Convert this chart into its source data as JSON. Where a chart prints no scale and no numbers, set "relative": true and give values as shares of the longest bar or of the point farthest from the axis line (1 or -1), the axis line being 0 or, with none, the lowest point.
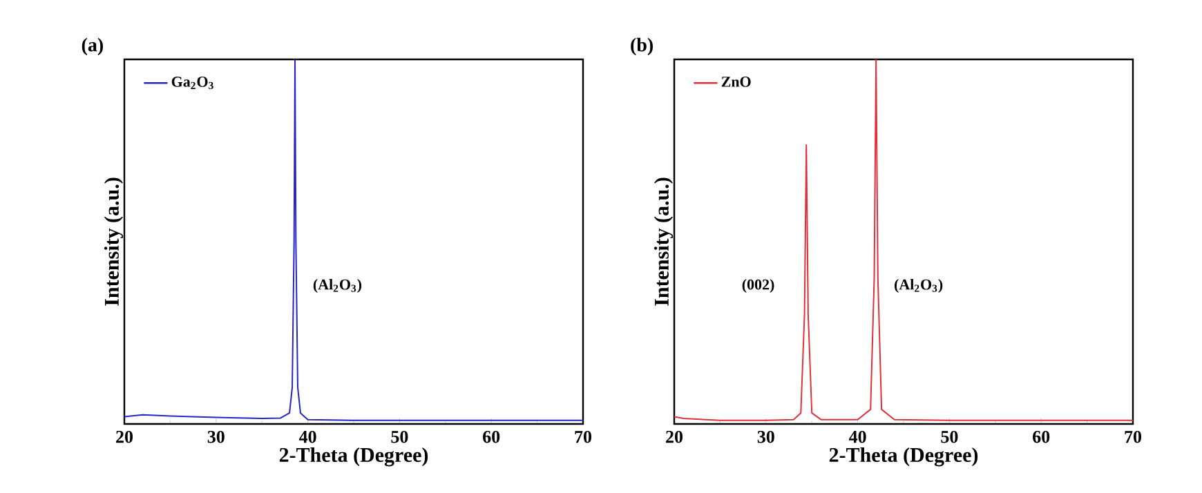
{
  "chart_data": [
    {
      "type": "line",
      "title": "(a)",
      "xlabel": "2-Theta (Degree)",
      "ylabel": "Intensity (a.u.)",
      "relative": true,
      "xlim": [
        20,
        70
      ],
      "xticks": [
        20,
        30,
        40,
        50,
        60,
        70
      ],
      "legend": "top left",
      "grid": false,
      "annotations": [
        "(Al$_{2}$O$_{3}$)"
      ],
      "series": [
        {
          "name": "Ga$_{2}$O$_{3}$",
          "color": "#2424c8",
          "x": [
            20,
            22,
            25,
            30,
            35,
            37,
            38,
            38.3,
            38.5,
            38.6,
            38.7,
            38.9,
            39.2,
            40,
            45,
            50,
            60,
            70
          ],
          "values": [
            0.02,
            0.025,
            0.022,
            0.018,
            0.015,
            0.016,
            0.03,
            0.1,
            0.5,
            1,
            0.5,
            0.1,
            0.03,
            0.012,
            0.01,
            0.01,
            0.01,
            0.01
          ]
        }
      ]
    },
    {
      "type": "line",
      "title": "(b)",
      "xlabel": "2-Theta (Degree)",
      "ylabel": "Intensity (a.u.)",
      "relative": true,
      "xlim": [
        20,
        70
      ],
      "xticks": [
        20,
        30,
        40,
        50,
        60,
        70
      ],
      "legend": "top left",
      "grid": false,
      "annotations": [
        "(002)",
        "(Al$_{2}$O$_{3}$)"
      ],
      "series": [
        {
          "name": "ZnO",
          "color": "#e0303a",
          "x": [
            20,
            21,
            25,
            30,
            33,
            33.8,
            34.2,
            34.4,
            34.6,
            35,
            36,
            40,
            41.4,
            41.8,
            42,
            42.2,
            42.6,
            44,
            50,
            60,
            70
          ],
          "values": [
            0.02,
            0.015,
            0.01,
            0.01,
            0.012,
            0.03,
            0.3,
            0.765,
            0.3,
            0.03,
            0.012,
            0.012,
            0.04,
            0.4,
            1,
            0.4,
            0.04,
            0.012,
            0.01,
            0.01,
            0.01
          ]
        }
      ]
    }
  ]
}
